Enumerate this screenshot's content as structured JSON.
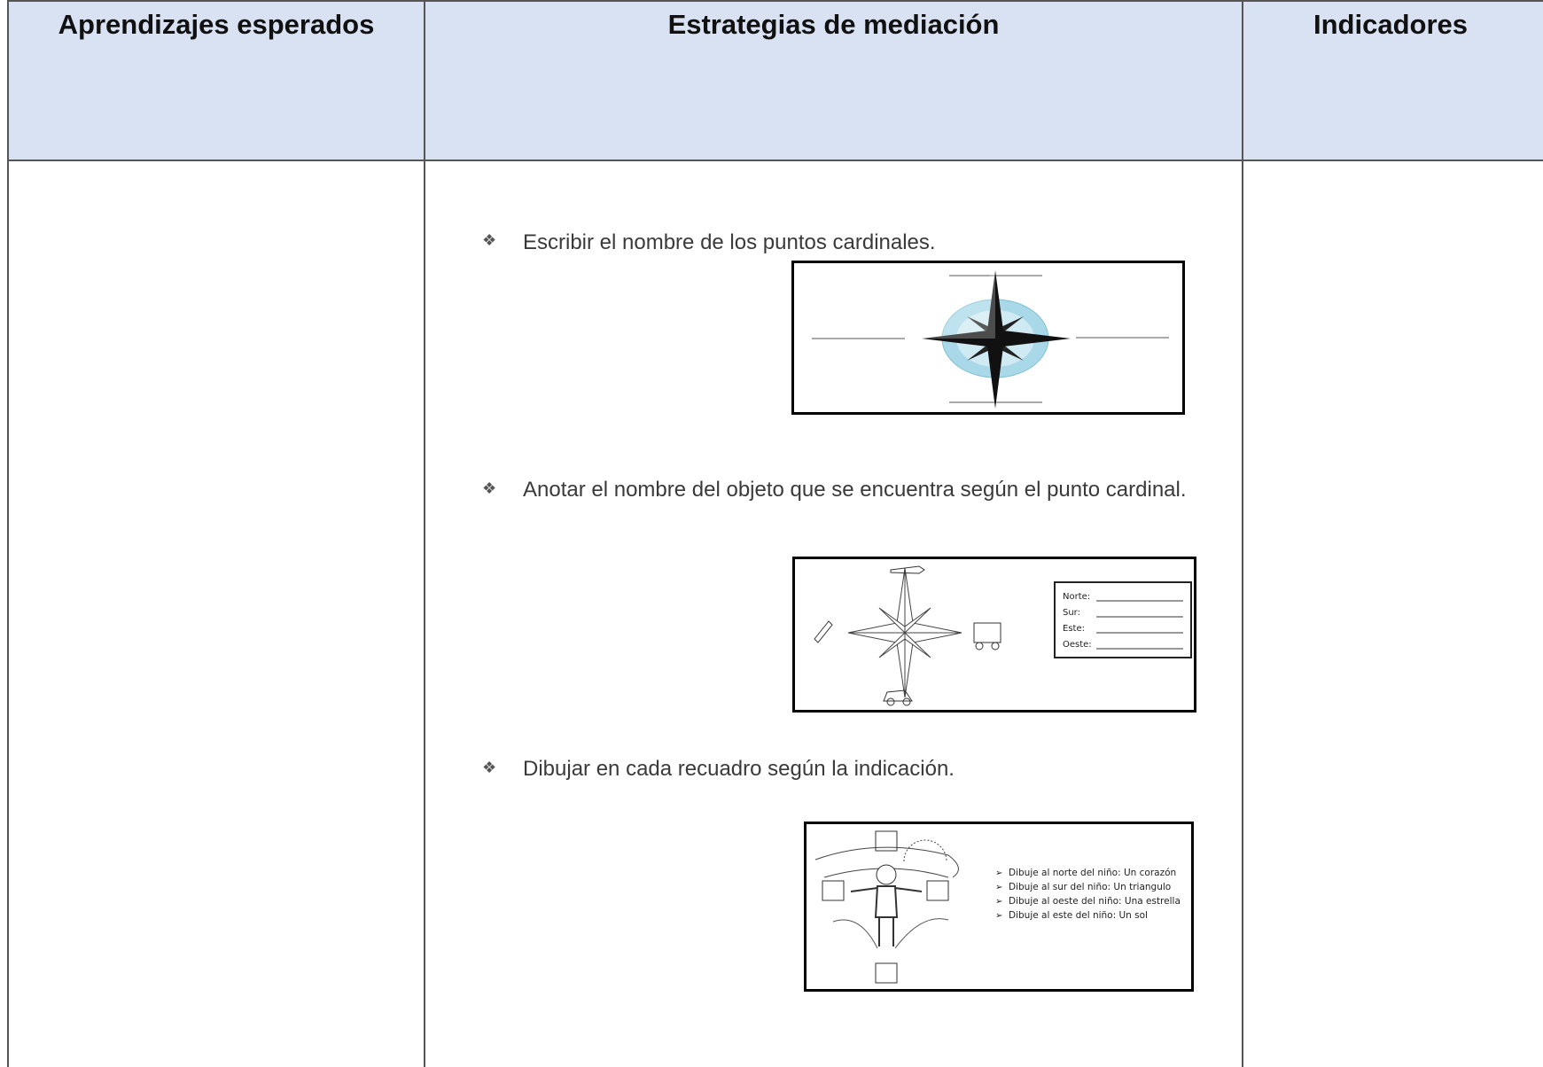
{
  "header": [
    "Aprendizajes esperados",
    "Estrategias de mediación",
    "Indicadores"
  ],
  "activities": [
    {
      "text": "Escribir el nombre de los puntos cardinales."
    },
    {
      "text": "Anotar el nombre del objeto que se encuentra según el punto cardinal.",
      "figure_labels": [
        "Norte:",
        "Sur:",
        "Este:",
        "Oeste:"
      ]
    },
    {
      "text": "Dibujar en cada recuadro según la indicación.",
      "figure_instructions": [
        "Dibuje al norte del niño: Un corazón",
        "Dibuje al sur del niño: Un triangulo",
        "Dibuje al oeste del niño: Una estrella",
        "Dibuje al este del niño: Un sol"
      ]
    }
  ]
}
